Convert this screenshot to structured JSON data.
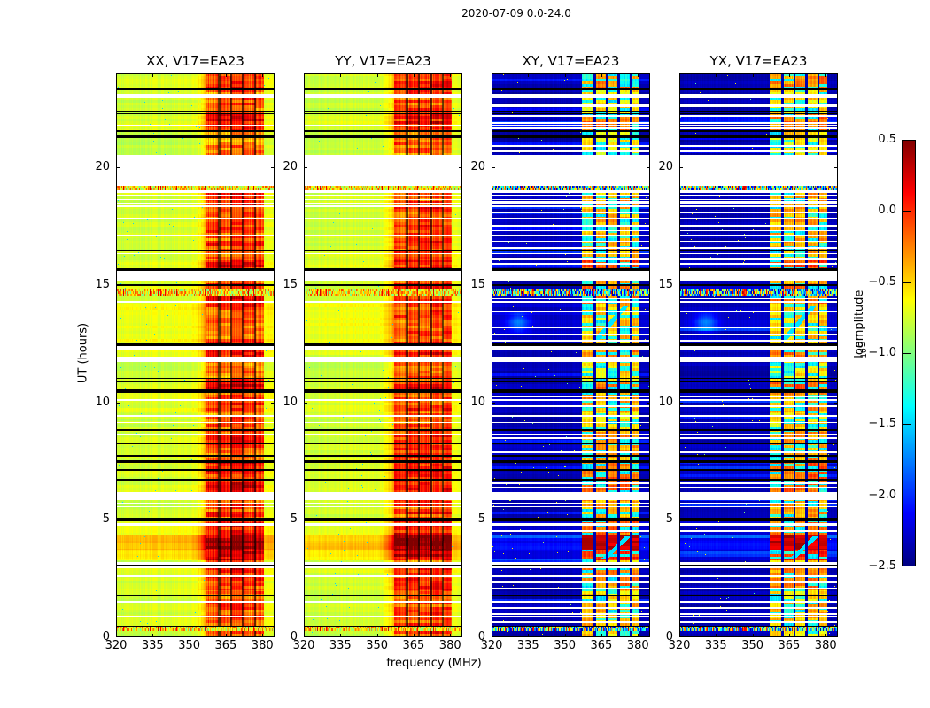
{
  "figure": {
    "title": "2020-07-09 0.0-24.0",
    "background": "#ffffff"
  },
  "axes": {
    "xlabel": "frequency (MHz)",
    "ylabel": "UT (hours)"
  },
  "colorbar": {
    "label_prefix": "log",
    "label_sub": "10",
    "label_suffix": " amplitude",
    "tick_labels": [
      "0.5",
      "0.0",
      "−0.5",
      "−1.0",
      "−1.5",
      "−2.0",
      "−2.5"
    ],
    "tick_values": [
      0.5,
      0.0,
      -0.5,
      -1.0,
      -1.5,
      -2.0,
      -2.5
    ],
    "range": [
      -2.5,
      0.5
    ],
    "colormap": "jet"
  },
  "chart_data": {
    "type": "heatmap",
    "title": "2020-07-09 0.0-24.0",
    "xlabel": "frequency (MHz)",
    "ylabel": "UT (hours)",
    "x_range": [
      320,
      385
    ],
    "x_ticks": [
      320,
      335,
      350,
      365,
      380
    ],
    "x_tick_labels": [
      "320",
      "335",
      "350",
      "365",
      "380"
    ],
    "y_range": [
      0,
      24
    ],
    "y_ticks": [
      0,
      5,
      10,
      15,
      20
    ],
    "y_tick_labels": [
      "0",
      "5",
      "10",
      "15",
      "20"
    ],
    "panels": [
      {
        "title": "XX, V17=EA23",
        "kind": "auto"
      },
      {
        "title": "YY, V17=EA23",
        "kind": "auto"
      },
      {
        "title": "XY, V17=EA23",
        "kind": "cross"
      },
      {
        "title": "YX, V17=EA23",
        "kind": "cross"
      }
    ],
    "key_colors": {
      "background": "#ffffff",
      "flagged_rows": "#000000",
      "missing_data": "#ffffff"
    },
    "levels": {
      "auto_bg": -0.8,
      "cross_bg": -2.36,
      "auto_rfi": -0.18,
      "cross_rfi_hi": -0.55,
      "cross_rfi_lo": -1.35
    },
    "rfi_band": {
      "start": 357,
      "end": 380.5,
      "bleed_start": 350,
      "separators": [
        362.3,
        367.2,
        372.1,
        377.0
      ]
    },
    "gaps_white": [
      [
        19.2,
        20.55
      ],
      [
        15.15,
        15.6
      ],
      [
        12.2,
        12.4
      ],
      [
        11.7,
        11.95
      ],
      [
        18.93,
        19.03
      ],
      [
        5.84,
        6.18
      ],
      [
        22.93,
        23.04
      ]
    ],
    "stripes_white_all": [
      [
        23.07,
        23.12
      ],
      [
        21.76,
        21.82
      ],
      [
        18.75,
        18.82
      ],
      [
        18.6,
        18.66
      ],
      [
        18.45,
        18.51
      ],
      [
        18.3,
        18.37
      ],
      [
        17.8,
        17.87
      ],
      [
        17.05,
        17.12
      ],
      [
        16.3,
        16.37
      ],
      [
        14.25,
        14.32
      ],
      [
        13.52,
        13.58
      ],
      [
        10.05,
        10.12
      ],
      [
        9.38,
        9.45
      ],
      [
        9.1,
        9.16
      ],
      [
        8.6,
        8.66
      ],
      [
        5.66,
        5.72
      ],
      [
        5.52,
        5.58
      ],
      [
        4.76,
        4.85
      ],
      [
        3.1,
        3.2
      ],
      [
        2.94,
        3.02
      ],
      [
        2.58,
        2.64
      ],
      [
        1.47,
        1.55
      ],
      [
        0.85,
        0.9
      ]
    ],
    "stripes_white_cross": [
      [
        22.56,
        22.68
      ],
      [
        22.14,
        22.24
      ],
      [
        21.84,
        21.94
      ],
      [
        21.62,
        21.7
      ],
      [
        20.86,
        20.94
      ],
      [
        20.65,
        20.73
      ],
      [
        18.5,
        18.57
      ],
      [
        18.05,
        18.12
      ],
      [
        17.5,
        17.57
      ],
      [
        17.28,
        17.35
      ],
      [
        16.8,
        16.87
      ],
      [
        16.55,
        16.62
      ],
      [
        16.05,
        16.12
      ],
      [
        15.88,
        15.95
      ],
      [
        14.38,
        14.44
      ],
      [
        13.85,
        13.92
      ],
      [
        13.15,
        13.22
      ],
      [
        12.85,
        12.92
      ],
      [
        12.6,
        12.66
      ],
      [
        10.2,
        10.26
      ],
      [
        9.8,
        9.87
      ],
      [
        8.45,
        8.52
      ],
      [
        7.85,
        7.92
      ],
      [
        6.35,
        6.42
      ],
      [
        6.52,
        6.58
      ],
      [
        4.5,
        4.56
      ],
      [
        2.3,
        2.37
      ],
      [
        2.05,
        2.12
      ],
      [
        1.2,
        1.27
      ],
      [
        0.95,
        1.02
      ],
      [
        0.6,
        0.66
      ]
    ],
    "flags_black": [
      [
        23.28,
        23.4
      ],
      [
        22.33,
        22.41
      ],
      [
        22.25,
        22.31
      ],
      [
        21.5,
        21.6
      ],
      [
        21.25,
        21.35
      ],
      [
        16.43,
        16.48
      ],
      [
        15.6,
        15.72
      ],
      [
        14.95,
        15.02
      ],
      [
        12.4,
        12.52
      ],
      [
        11.0,
        11.05
      ],
      [
        10.86,
        10.92
      ],
      [
        10.4,
        10.56
      ],
      [
        8.78,
        8.85
      ],
      [
        8.22,
        8.3
      ],
      [
        7.7,
        7.78
      ],
      [
        7.43,
        7.52
      ],
      [
        7.1,
        7.16
      ],
      [
        6.67,
        6.74
      ],
      [
        4.95,
        5.08
      ],
      [
        3.02,
        3.1
      ],
      [
        1.73,
        1.8
      ],
      [
        0.41,
        0.48
      ],
      [
        0.06,
        0.1
      ]
    ],
    "speckle_rows": [
      [
        19.03,
        19.2
      ],
      [
        14.55,
        14.8
      ],
      [
        0.26,
        0.41
      ]
    ],
    "intensity_periods": [
      {
        "range": [
          3.7,
          4.34
        ],
        "bg": 0.33,
        "rfi": 0.55
      },
      {
        "range": [
          3.28,
          3.7
        ],
        "bg": 0.2,
        "rfi": 0.4
      },
      {
        "range": [
          12.52,
          14.15
        ],
        "bg": 0.12,
        "rfi": 0.05
      },
      {
        "range": [
          9.6,
          10.4
        ],
        "bg": 0.07,
        "rfi": 0.12
      },
      {
        "range": [
          6.18,
          7.43
        ],
        "bg": 0.05,
        "rfi": 0.25
      },
      {
        "range": [
          21.6,
          22.25
        ],
        "bg": 0.05,
        "rfi": 0.22
      },
      {
        "range": [
          23.4,
          24.0
        ],
        "bg": 0.04,
        "rfi": 0.18
      },
      {
        "range": [
          14.15,
          14.95
        ],
        "bg": 0.05,
        "rfi": 0.2
      },
      {
        "range": [
          2.0,
          2.94
        ],
        "bg": 0.04,
        "rfi": 0.18
      },
      {
        "range": [
          4.34,
          4.95
        ],
        "bg": 0.1,
        "rfi": 0.25
      },
      {
        "range": [
          10.56,
          10.86
        ],
        "bg": 0.06,
        "rfi": 0.25
      },
      {
        "range": [
          15.72,
          16.05
        ],
        "bg": 0.08,
        "rfi": 0.3
      },
      {
        "range": [
          8.3,
          8.78
        ],
        "bg": 0.03,
        "rfi": 0.15
      },
      {
        "range": [
          0.48,
          1.47
        ],
        "bg": 0.02,
        "rfi": 0.08
      },
      {
        "range": [
          16.05,
          19.03
        ],
        "bg": 0.03,
        "rfi": 0.1
      },
      {
        "range": [
          20.55,
          21.25
        ],
        "bg": -0.03,
        "rfi": -0.05
      },
      {
        "range": [
          11.95,
          12.2
        ],
        "bg": 0.05,
        "rfi": 0.2
      },
      {
        "range": [
          7.52,
          8.22
        ],
        "bg": 0.04,
        "rfi": 0.12
      },
      {
        "range": [
          5.08,
          5.84
        ],
        "bg": 0.0,
        "rfi": 0.12
      },
      {
        "range": [
          14.95,
          15.15
        ],
        "bg": 0.0,
        "rfi": 0.1
      }
    ],
    "cyan_diagonals": [
      {
        "ut": [
          12.55,
          14.1
        ],
        "f0": 362,
        "f1": 375
      },
      {
        "ut": [
          3.3,
          4.3
        ],
        "f0": 366,
        "f1": 376
      }
    ]
  }
}
